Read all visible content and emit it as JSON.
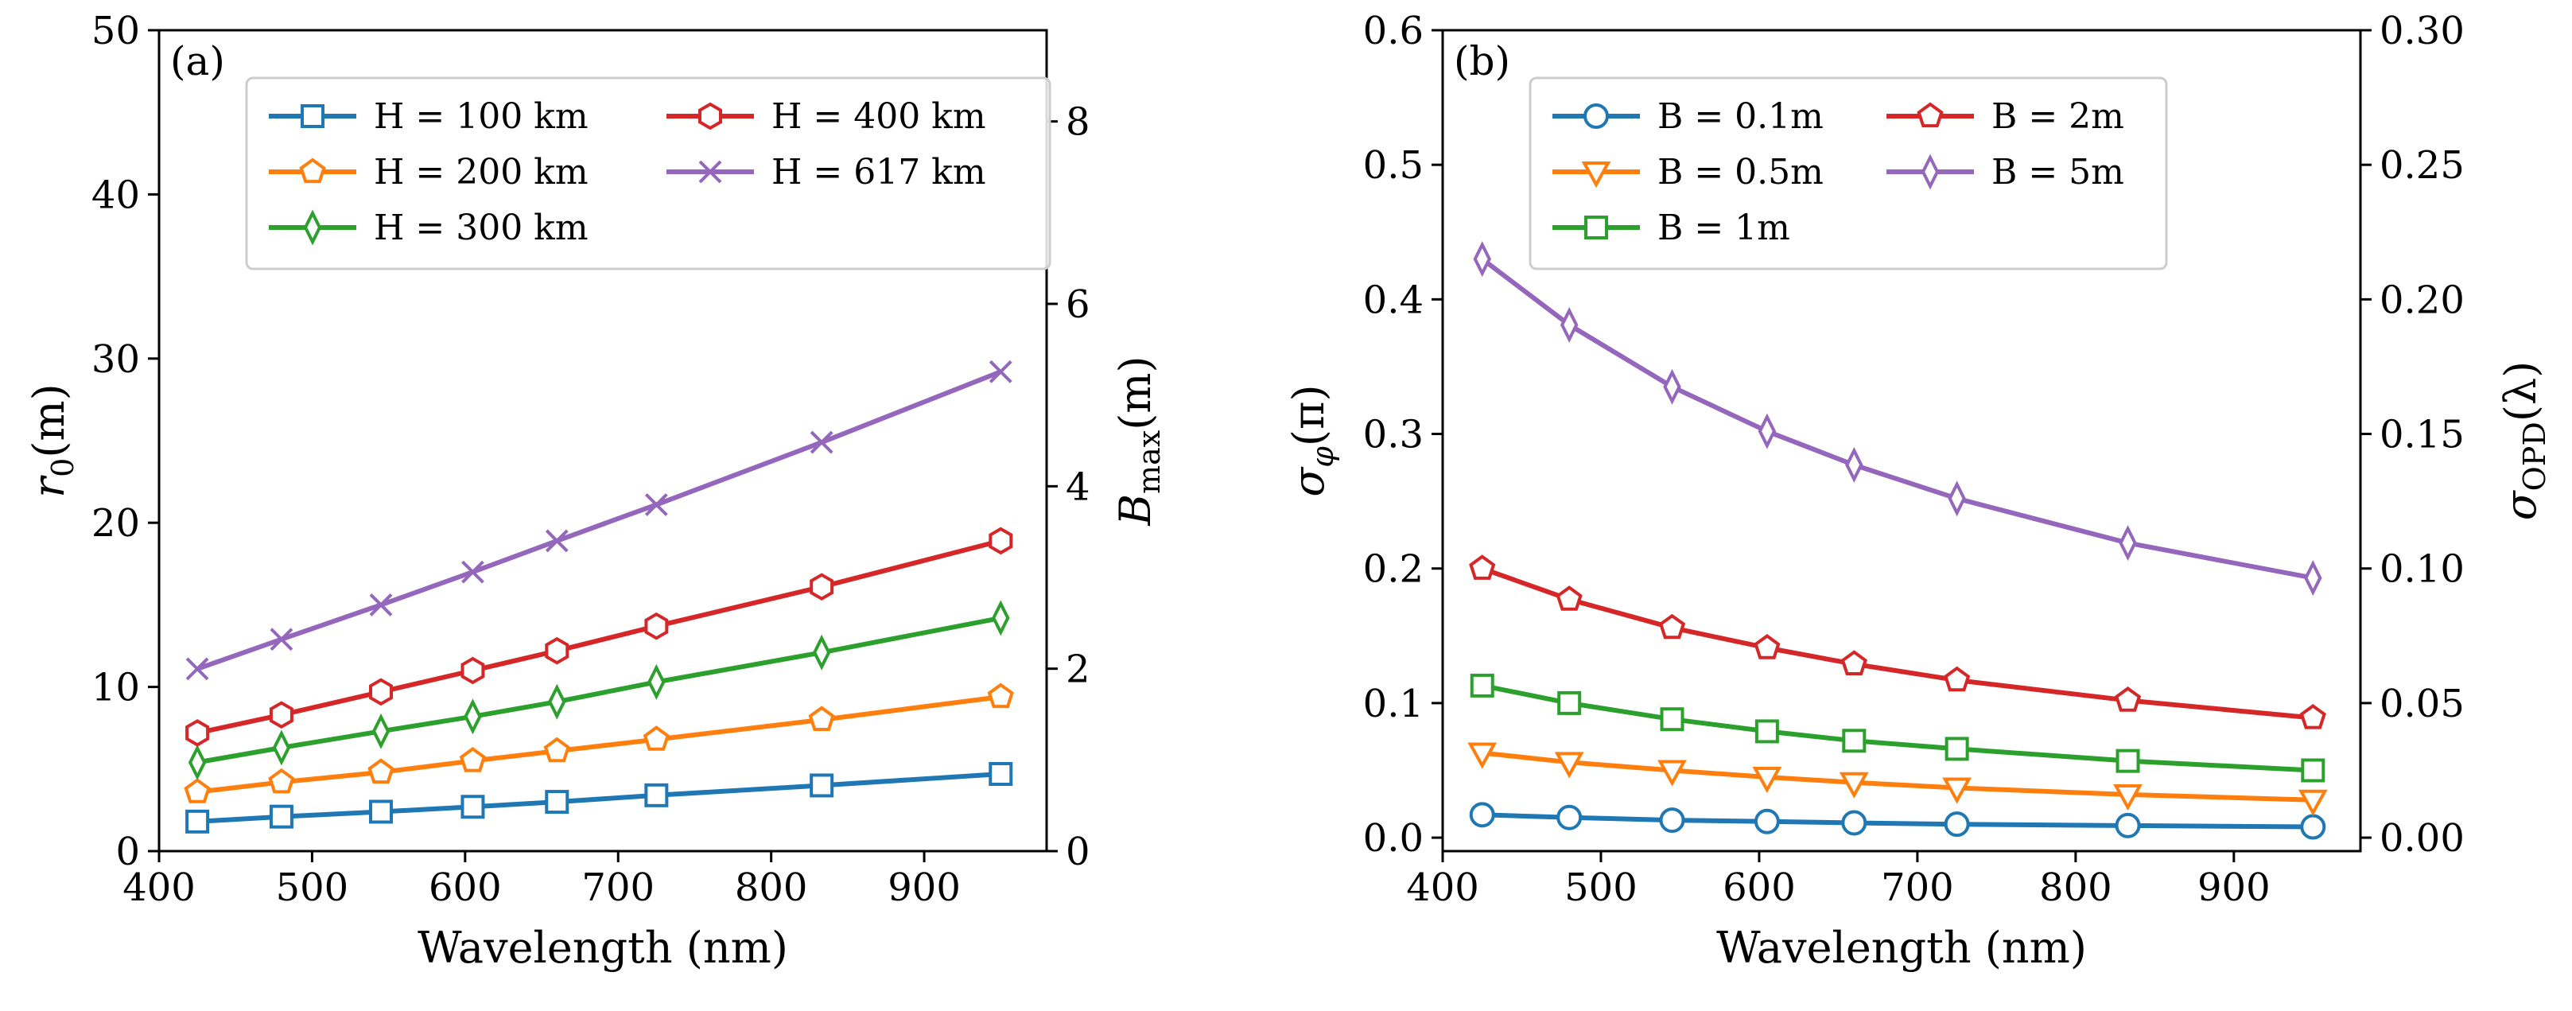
{
  "chart_data": [
    {
      "type": "line",
      "panel_label": "(a)",
      "xlabel": "Wavelength (nm)",
      "ylabel": "r_0(m)",
      "ylabel_parts": {
        "main": "r",
        "sub": "0",
        "tail": "(m)"
      },
      "y2label": "B_max(m)",
      "y2label_parts": {
        "main": "B",
        "sub": "max",
        "tail": "(m)"
      },
      "xlim": [
        400,
        980
      ],
      "ylim": [
        0,
        50
      ],
      "y2lim": [
        0,
        9
      ],
      "xticks": [
        "400",
        "500",
        "600",
        "700",
        "800",
        "900"
      ],
      "yticks": [
        "0",
        "10",
        "20",
        "30",
        "40",
        "50"
      ],
      "y2ticks": [
        "0",
        "2",
        "4",
        "6",
        "8"
      ],
      "x": [
        425,
        480,
        545,
        605,
        660,
        725,
        833,
        950
      ],
      "legend": "top-left, 2 columns",
      "series": [
        {
          "name": "H = 100 km",
          "marker": "square",
          "color": "#1f77b4",
          "values": [
            1.8,
            2.1,
            2.4,
            2.7,
            3.0,
            3.4,
            4.0,
            4.7
          ]
        },
        {
          "name": "H = 200 km",
          "marker": "pentagon",
          "color": "#ff7f0e",
          "values": [
            3.6,
            4.2,
            4.8,
            5.5,
            6.1,
            6.8,
            8.0,
            9.4
          ]
        },
        {
          "name": "H = 300 km",
          "marker": "thin_diamond",
          "color": "#2ca02c",
          "values": [
            5.4,
            6.3,
            7.3,
            8.2,
            9.1,
            10.3,
            12.1,
            14.2
          ]
        },
        {
          "name": "H = 400 km",
          "marker": "hexagon",
          "color": "#d62728",
          "values": [
            7.2,
            8.3,
            9.7,
            11.0,
            12.2,
            13.7,
            16.1,
            18.9
          ]
        },
        {
          "name": "H = 617 km",
          "marker": "x",
          "color": "#9467bd",
          "values": [
            11.1,
            12.9,
            15.0,
            17.0,
            18.9,
            21.1,
            24.9,
            29.2
          ]
        }
      ]
    },
    {
      "type": "line",
      "panel_label": "(b)",
      "xlabel": "Wavelength (nm)",
      "ylabel": "σ_φ(π)",
      "ylabel_parts": {
        "main": "σ",
        "sub": "φ",
        "tail": "(π)"
      },
      "y2label": "σ_OPD(λ)",
      "y2label_parts": {
        "main": "σ",
        "sub": "OPD",
        "tail": "(λ)"
      },
      "xlim": [
        400,
        980
      ],
      "ylim": [
        -0.01,
        0.6
      ],
      "y2lim": [
        -0.005,
        0.3
      ],
      "xticks": [
        "400",
        "500",
        "600",
        "700",
        "800",
        "900"
      ],
      "yticks": [
        "0.0",
        "0.1",
        "0.2",
        "0.3",
        "0.4",
        "0.5",
        "0.6"
      ],
      "y2ticks": [
        "0.00",
        "0.05",
        "0.10",
        "0.15",
        "0.20",
        "0.25",
        "0.30"
      ],
      "x": [
        425,
        480,
        545,
        605,
        660,
        725,
        833,
        950
      ],
      "legend": "top-left, 2 columns",
      "series": [
        {
          "name": "B = 0.1m",
          "marker": "circle",
          "color": "#1f77b4",
          "values": [
            0.017,
            0.015,
            0.013,
            0.012,
            0.011,
            0.01,
            0.009,
            0.008
          ]
        },
        {
          "name": "B = 0.5m",
          "marker": "triangle_down",
          "color": "#ff7f0e",
          "values": [
            0.063,
            0.056,
            0.05,
            0.045,
            0.041,
            0.037,
            0.032,
            0.028
          ]
        },
        {
          "name": "B = 1m",
          "marker": "square",
          "color": "#2ca02c",
          "values": [
            0.113,
            0.1,
            0.088,
            0.079,
            0.072,
            0.066,
            0.057,
            0.05
          ]
        },
        {
          "name": "B = 2m",
          "marker": "pentagon",
          "color": "#d62728",
          "values": [
            0.2,
            0.177,
            0.156,
            0.141,
            0.129,
            0.117,
            0.102,
            0.089
          ]
        },
        {
          "name": "B = 5m",
          "marker": "thin_diamond",
          "color": "#9467bd",
          "values": [
            0.43,
            0.381,
            0.335,
            0.302,
            0.277,
            0.252,
            0.219,
            0.193
          ]
        }
      ]
    }
  ]
}
